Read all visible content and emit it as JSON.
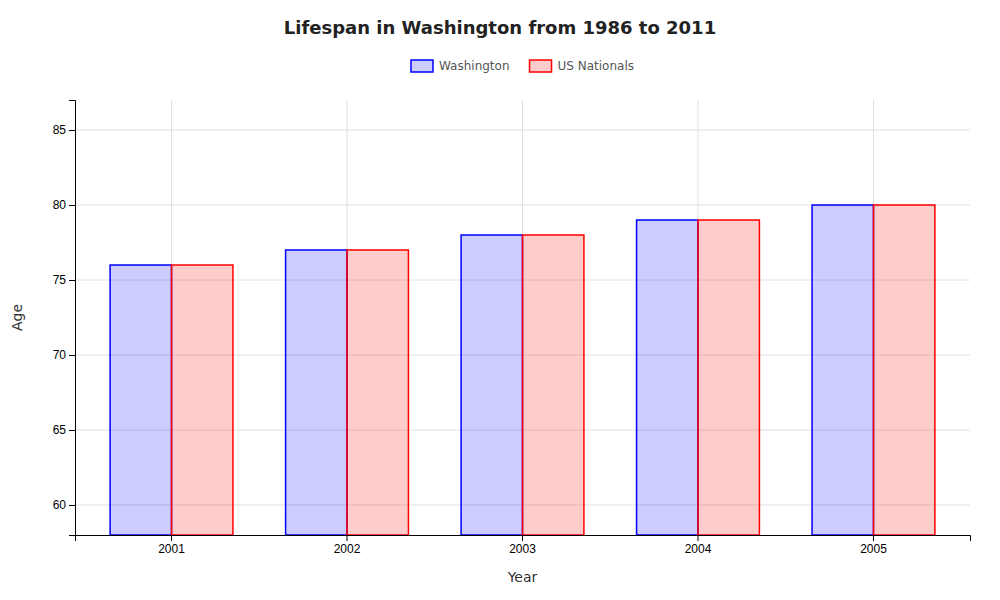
{
  "chart_data": {
    "type": "bar",
    "title": "Lifespan in Washington from 1986 to 2011",
    "xlabel": "Year",
    "ylabel": "Age",
    "categories": [
      "2001",
      "2002",
      "2003",
      "2004",
      "2005"
    ],
    "series": [
      {
        "name": "Washington",
        "color": "#0000ff",
        "values": [
          76.0,
          77.0,
          78.0,
          79.0,
          80.0
        ]
      },
      {
        "name": "US Nationals",
        "color": "#ff0000",
        "values": [
          76.0,
          77.0,
          78.0,
          79.0,
          80.0
        ]
      }
    ],
    "ylim": [
      58,
      87
    ],
    "yticks": [
      60,
      65,
      70,
      75,
      80,
      85
    ],
    "grid": true,
    "legend": "top"
  }
}
